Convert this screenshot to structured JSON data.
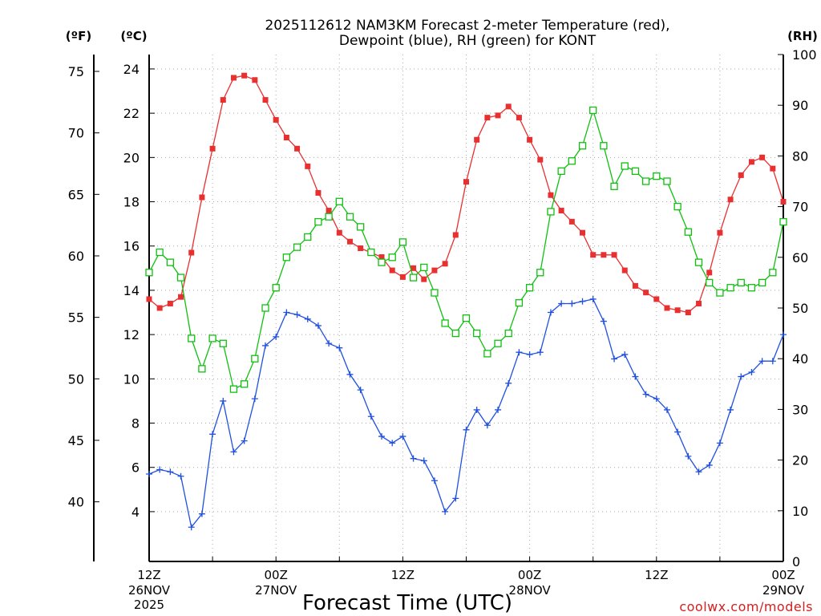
{
  "title": {
    "line1": "2025112612 NAM3KM Forecast 2-meter Temperature (red),",
    "line2": "Dewpoint (blue), RH (green) for KONT"
  },
  "units": {
    "f": "(ºF)",
    "c": "(ºC)",
    "rh": "(RH)"
  },
  "axis_ticks": {
    "f": [
      "75",
      "70",
      "65",
      "60",
      "55",
      "50",
      "45",
      "40"
    ],
    "c": [
      "24",
      "22",
      "20",
      "18",
      "16",
      "14",
      "12",
      "10",
      "8",
      "6",
      "4"
    ],
    "rh": [
      "100",
      "90",
      "80",
      "70",
      "60",
      "50",
      "40",
      "30",
      "20",
      "10",
      "0"
    ]
  },
  "x_labels": [
    {
      "time": "12Z",
      "date": "26NOV",
      "year": "2025"
    },
    {
      "time": "00Z",
      "date": "27NOV"
    },
    {
      "time": "12Z"
    },
    {
      "time": "00Z",
      "date": "28NOV"
    },
    {
      "time": "12Z"
    },
    {
      "time": "00Z",
      "date": "29NOV"
    }
  ],
  "x_title": "Forecast Time (UTC)",
  "credit": "coolwx.com/models",
  "chart_data": {
    "type": "line",
    "x_unit": "forecast hour",
    "x_range": [
      0,
      60
    ],
    "series": [
      {
        "name": "2-meter Temperature",
        "axis": "C",
        "color": "#e83030",
        "marker": "filled-square",
        "values": [
          13.6,
          13.2,
          13.4,
          13.7,
          15.7,
          18.2,
          20.4,
          22.6,
          23.6,
          23.7,
          23.5,
          22.6,
          21.7,
          20.9,
          20.4,
          19.6,
          18.4,
          17.6,
          16.6,
          16.2,
          15.9,
          15.7,
          15.5,
          14.9,
          14.6,
          15.0,
          14.5,
          14.9,
          15.2,
          16.5,
          18.9,
          20.8,
          21.8,
          21.9,
          22.3,
          21.8,
          20.8,
          19.9,
          18.3,
          17.6,
          17.1,
          16.6,
          15.6,
          15.6,
          15.6,
          14.9,
          14.2,
          13.9,
          13.6,
          13.2,
          13.1,
          13.0,
          13.4,
          14.8,
          16.6,
          18.1,
          19.2,
          19.8,
          20.0,
          19.5,
          18.0
        ],
        "x_min": 0,
        "x_step": 1
      },
      {
        "name": "Dewpoint",
        "axis": "C",
        "color": "#2050e0",
        "marker": "plus",
        "values": [
          5.7,
          5.9,
          5.8,
          5.6,
          3.3,
          3.9,
          7.5,
          9.0,
          6.7,
          7.2,
          9.1,
          11.5,
          11.9,
          13.0,
          12.9,
          12.7,
          12.4,
          11.6,
          11.4,
          10.2,
          9.5,
          8.3,
          7.4,
          7.1,
          7.4,
          6.4,
          6.3,
          5.4,
          4.0,
          4.6,
          7.7,
          8.6,
          7.9,
          8.6,
          9.8,
          11.2,
          11.1,
          11.2,
          13.0,
          13.4,
          13.4,
          13.5,
          13.6,
          12.6,
          10.9,
          11.1,
          10.1,
          9.3,
          9.1,
          8.6,
          7.6,
          6.5,
          5.8,
          6.1,
          7.1,
          8.6,
          10.1,
          10.3,
          10.8,
          10.8,
          12.0
        ],
        "x_min": 0,
        "x_step": 1
      },
      {
        "name": "RH",
        "axis": "RH",
        "color": "#10c010",
        "marker": "open-square",
        "values": [
          57,
          61,
          59,
          56,
          44,
          38,
          44,
          43,
          34,
          35,
          40,
          50,
          54,
          60,
          62,
          64,
          67,
          68,
          71,
          68,
          66,
          61,
          59,
          60,
          63,
          56,
          58,
          53,
          47,
          45,
          48,
          45,
          41,
          43,
          45,
          51,
          54,
          57,
          69,
          77,
          79,
          82,
          89,
          82,
          74,
          78,
          77,
          75,
          76,
          75,
          70,
          65,
          59,
          55,
          53,
          54,
          55,
          54,
          55,
          57,
          67
        ],
        "x_min": 0,
        "x_step": 1
      }
    ],
    "axes": {
      "temperature_c": {
        "range": [
          1.75,
          24.65
        ],
        "label": "(ºC)"
      },
      "temperature_f": {
        "range": [
          35.15,
          76.37
        ],
        "label": "(ºF)"
      },
      "rh": {
        "range": [
          0,
          100
        ],
        "label": "(RH)"
      }
    },
    "grid": true,
    "xlabel": "Forecast Time (UTC)"
  }
}
